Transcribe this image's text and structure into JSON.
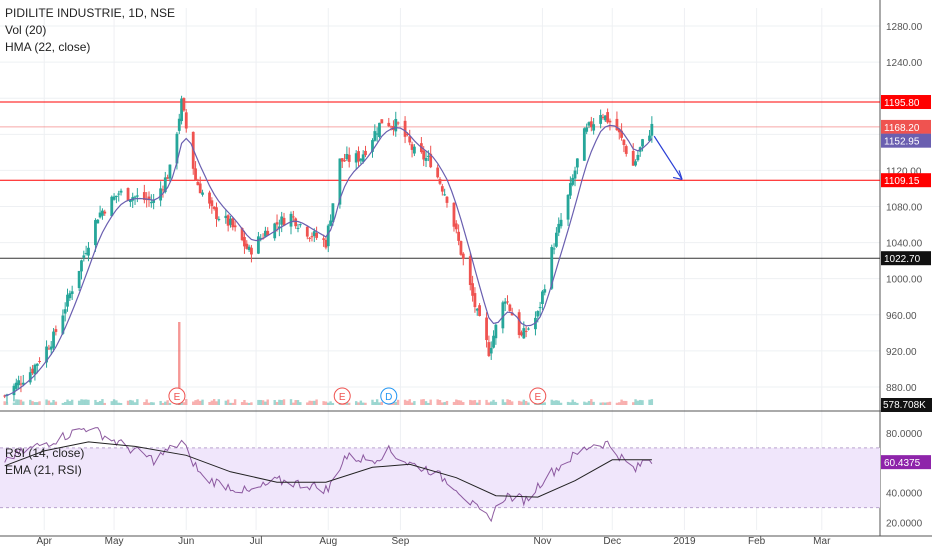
{
  "header": {
    "symbol_line": "PIDILITE INDUSTRIE, 1D, NSE",
    "vol_label": "Vol (20)",
    "hma_label": "HMA (22, close)",
    "rsi_label": "RSI (14, close)",
    "ema_label": "EMA (21, RSI)"
  },
  "colors": {
    "up": "#26a69a",
    "down": "#ef5350",
    "hma": "#6a5fb0",
    "rsi": "#7a3f8f",
    "rsi_band": "#f0e6fb",
    "hline_red": "#ff0000",
    "hline_dark": "#333333",
    "arrow": "#2a3fd6"
  },
  "chart_data": [
    {
      "type": "candlestick",
      "title": "PIDILITE INDUSTRIE, 1D, NSE",
      "xaxis_ticks": [
        "Apr",
        "May",
        "Jun",
        "Jul",
        "Aug",
        "Sep",
        "Nov",
        "Dec",
        "2019",
        "Feb",
        "Mar"
      ],
      "ylim": [
        860,
        1300
      ],
      "yaxis_ticks": [
        880,
        920,
        960,
        1000,
        1040,
        1080,
        1120,
        1160,
        1200,
        1240,
        1280
      ],
      "yaxis_tick_labels": [
        "880.00",
        "920.00",
        "960.00",
        "1000.00",
        "1040.00",
        "1080.00",
        "1120.00",
        "1160.00",
        "1200.00",
        "1240.00",
        "1280.00"
      ],
      "price_levels": [
        {
          "value": 1195.8,
          "label": "1195.80",
          "kind": "resistance"
        },
        {
          "value": 1168.2,
          "label": "1168.20",
          "kind": "last_price"
        },
        {
          "value": 1152.95,
          "label": "1152.95",
          "kind": "hma"
        },
        {
          "value": 1109.15,
          "label": "1109.15",
          "kind": "support"
        },
        {
          "value": 1022.7,
          "label": "1022.70",
          "kind": "level"
        }
      ],
      "price_path": [
        {
          "date": "2018-03-15",
          "close": 870
        },
        {
          "date": "2018-03-27",
          "close": 900
        },
        {
          "date": "2018-04-05",
          "close": 935
        },
        {
          "date": "2018-04-13",
          "close": 990
        },
        {
          "date": "2018-04-24",
          "close": 1070
        },
        {
          "date": "2018-05-03",
          "close": 1095
        },
        {
          "date": "2018-05-11",
          "close": 1090
        },
        {
          "date": "2018-05-18",
          "close": 1085
        },
        {
          "date": "2018-05-25",
          "close": 1120
        },
        {
          "date": "2018-05-30",
          "close": 1195
        },
        {
          "date": "2018-06-05",
          "close": 1110
        },
        {
          "date": "2018-06-12",
          "close": 1075
        },
        {
          "date": "2018-06-20",
          "close": 1060
        },
        {
          "date": "2018-06-28",
          "close": 1030
        },
        {
          "date": "2018-07-06",
          "close": 1055
        },
        {
          "date": "2018-07-16",
          "close": 1070
        },
        {
          "date": "2018-07-24",
          "close": 1050
        },
        {
          "date": "2018-07-31",
          "close": 1040
        },
        {
          "date": "2018-08-06",
          "close": 1130
        },
        {
          "date": "2018-08-15",
          "close": 1135
        },
        {
          "date": "2018-08-24",
          "close": 1175
        },
        {
          "date": "2018-08-31",
          "close": 1170
        },
        {
          "date": "2018-09-07",
          "close": 1140
        },
        {
          "date": "2018-09-14",
          "close": 1130
        },
        {
          "date": "2018-09-21",
          "close": 1090
        },
        {
          "date": "2018-09-27",
          "close": 1030
        },
        {
          "date": "2018-10-04",
          "close": 960
        },
        {
          "date": "2018-10-09",
          "close": 920
        },
        {
          "date": "2018-10-16",
          "close": 980
        },
        {
          "date": "2018-10-23",
          "close": 935
        },
        {
          "date": "2018-10-30",
          "close": 960
        },
        {
          "date": "2018-11-05",
          "close": 1030
        },
        {
          "date": "2018-11-12",
          "close": 1090
        },
        {
          "date": "2018-11-19",
          "close": 1160
        },
        {
          "date": "2018-11-26",
          "close": 1185
        },
        {
          "date": "2018-12-03",
          "close": 1165
        },
        {
          "date": "2018-12-10",
          "close": 1125
        },
        {
          "date": "2018-12-14",
          "close": 1150
        },
        {
          "date": "2018-12-18",
          "close": 1168.2
        }
      ],
      "projection": [
        {
          "date": "2018-12-19",
          "value": 1158
        },
        {
          "date": "2018-12-31",
          "value": 1110
        }
      ],
      "event_markers": [
        {
          "date": "2018-05-28",
          "label": "E"
        },
        {
          "date": "2018-08-07",
          "label": "E"
        },
        {
          "date": "2018-08-27",
          "label": "D"
        },
        {
          "date": "2018-10-30",
          "label": "E"
        }
      ],
      "volume": {
        "label": "578.708K",
        "spike_date": "2018-05-29"
      }
    },
    {
      "type": "line",
      "title": "RSI (14, close)",
      "ylim": [
        15,
        90
      ],
      "yaxis_ticks": [
        20,
        40,
        60,
        80
      ],
      "yaxis_tick_labels": [
        "20.0000",
        "40.0000",
        "60.0000",
        "80.0000"
      ],
      "bands": [
        30,
        70
      ],
      "series": [
        {
          "name": "RSI (14, close)",
          "last_label": "60.4375",
          "points": [
            {
              "date": "2018-03-15",
              "value": 62
            },
            {
              "date": "2018-03-27",
              "value": 70
            },
            {
              "date": "2018-04-05",
              "value": 75
            },
            {
              "date": "2018-04-13",
              "value": 80
            },
            {
              "date": "2018-04-20",
              "value": 84
            },
            {
              "date": "2018-04-27",
              "value": 78
            },
            {
              "date": "2018-05-07",
              "value": 70
            },
            {
              "date": "2018-05-18",
              "value": 62
            },
            {
              "date": "2018-05-30",
              "value": 74
            },
            {
              "date": "2018-06-08",
              "value": 50
            },
            {
              "date": "2018-06-20",
              "value": 44
            },
            {
              "date": "2018-06-28",
              "value": 40
            },
            {
              "date": "2018-07-10",
              "value": 48
            },
            {
              "date": "2018-07-24",
              "value": 45
            },
            {
              "date": "2018-08-01",
              "value": 42
            },
            {
              "date": "2018-08-08",
              "value": 64
            },
            {
              "date": "2018-08-20",
              "value": 62
            },
            {
              "date": "2018-08-27",
              "value": 68
            },
            {
              "date": "2018-09-04",
              "value": 60
            },
            {
              "date": "2018-09-14",
              "value": 55
            },
            {
              "date": "2018-09-24",
              "value": 45
            },
            {
              "date": "2018-10-03",
              "value": 30
            },
            {
              "date": "2018-10-09",
              "value": 22
            },
            {
              "date": "2018-10-16",
              "value": 38
            },
            {
              "date": "2018-10-25",
              "value": 35
            },
            {
              "date": "2018-11-02",
              "value": 50
            },
            {
              "date": "2018-11-12",
              "value": 62
            },
            {
              "date": "2018-11-22",
              "value": 72
            },
            {
              "date": "2018-11-29",
              "value": 73
            },
            {
              "date": "2018-12-07",
              "value": 60
            },
            {
              "date": "2018-12-11",
              "value": 55
            },
            {
              "date": "2018-12-16",
              "value": 64
            },
            {
              "date": "2018-12-18",
              "value": 60.4375
            }
          ]
        },
        {
          "name": "EMA (21, RSI)",
          "points": [
            {
              "date": "2018-03-15",
              "value": 58
            },
            {
              "date": "2018-04-01",
              "value": 68
            },
            {
              "date": "2018-04-20",
              "value": 74
            },
            {
              "date": "2018-05-10",
              "value": 71
            },
            {
              "date": "2018-06-01",
              "value": 65
            },
            {
              "date": "2018-06-20",
              "value": 54
            },
            {
              "date": "2018-07-10",
              "value": 47
            },
            {
              "date": "2018-07-31",
              "value": 47
            },
            {
              "date": "2018-08-20",
              "value": 57
            },
            {
              "date": "2018-09-05",
              "value": 59
            },
            {
              "date": "2018-09-25",
              "value": 50
            },
            {
              "date": "2018-10-12",
              "value": 38
            },
            {
              "date": "2018-10-30",
              "value": 37
            },
            {
              "date": "2018-11-15",
              "value": 48
            },
            {
              "date": "2018-12-01",
              "value": 62
            },
            {
              "date": "2018-12-18",
              "value": 62
            }
          ]
        }
      ]
    }
  ]
}
